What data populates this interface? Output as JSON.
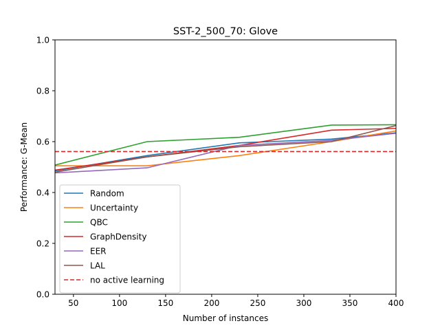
{
  "chart_data": {
    "type": "line",
    "title": "SST-2_500_70: Glove",
    "xlabel": "Number of instances",
    "ylabel": "Performance: G-Mean",
    "xlim": [
      30,
      400
    ],
    "ylim": [
      0.0,
      1.0
    ],
    "xticks": [
      "50",
      "100",
      "150",
      "200",
      "250",
      "300",
      "350",
      "400"
    ],
    "yticks": [
      "0.0",
      "0.2",
      "0.4",
      "0.6",
      "0.8",
      "1.0"
    ],
    "grid": false,
    "legend_position": "lower-left",
    "x": [
      30,
      130,
      230,
      330,
      430
    ],
    "series": [
      {
        "name": "Random",
        "color": "#1f77b4",
        "style": "solid",
        "values": [
          0.485,
          0.545,
          0.595,
          0.61,
          0.645
        ]
      },
      {
        "name": "Uncertainty",
        "color": "#ff7f0e",
        "style": "solid",
        "values": [
          0.505,
          0.505,
          0.545,
          0.6,
          0.66
        ]
      },
      {
        "name": "QBC",
        "color": "#2ca02c",
        "style": "solid",
        "values": [
          0.508,
          0.6,
          0.617,
          0.665,
          0.667
        ]
      },
      {
        "name": "GraphDensity",
        "color": "#d62728",
        "style": "solid",
        "values": [
          0.488,
          0.54,
          0.585,
          0.645,
          0.655
        ]
      },
      {
        "name": "EER",
        "color": "#9467bd",
        "style": "solid",
        "values": [
          0.477,
          0.497,
          0.585,
          0.605,
          0.645
        ]
      },
      {
        "name": "LAL",
        "color": "#8c564b",
        "style": "solid",
        "values": [
          0.48,
          0.54,
          0.58,
          0.6,
          0.69
        ]
      }
    ],
    "reference_line": {
      "name": "no active learning",
      "color": "#d62728",
      "style": "dashed",
      "value": 0.561
    }
  }
}
